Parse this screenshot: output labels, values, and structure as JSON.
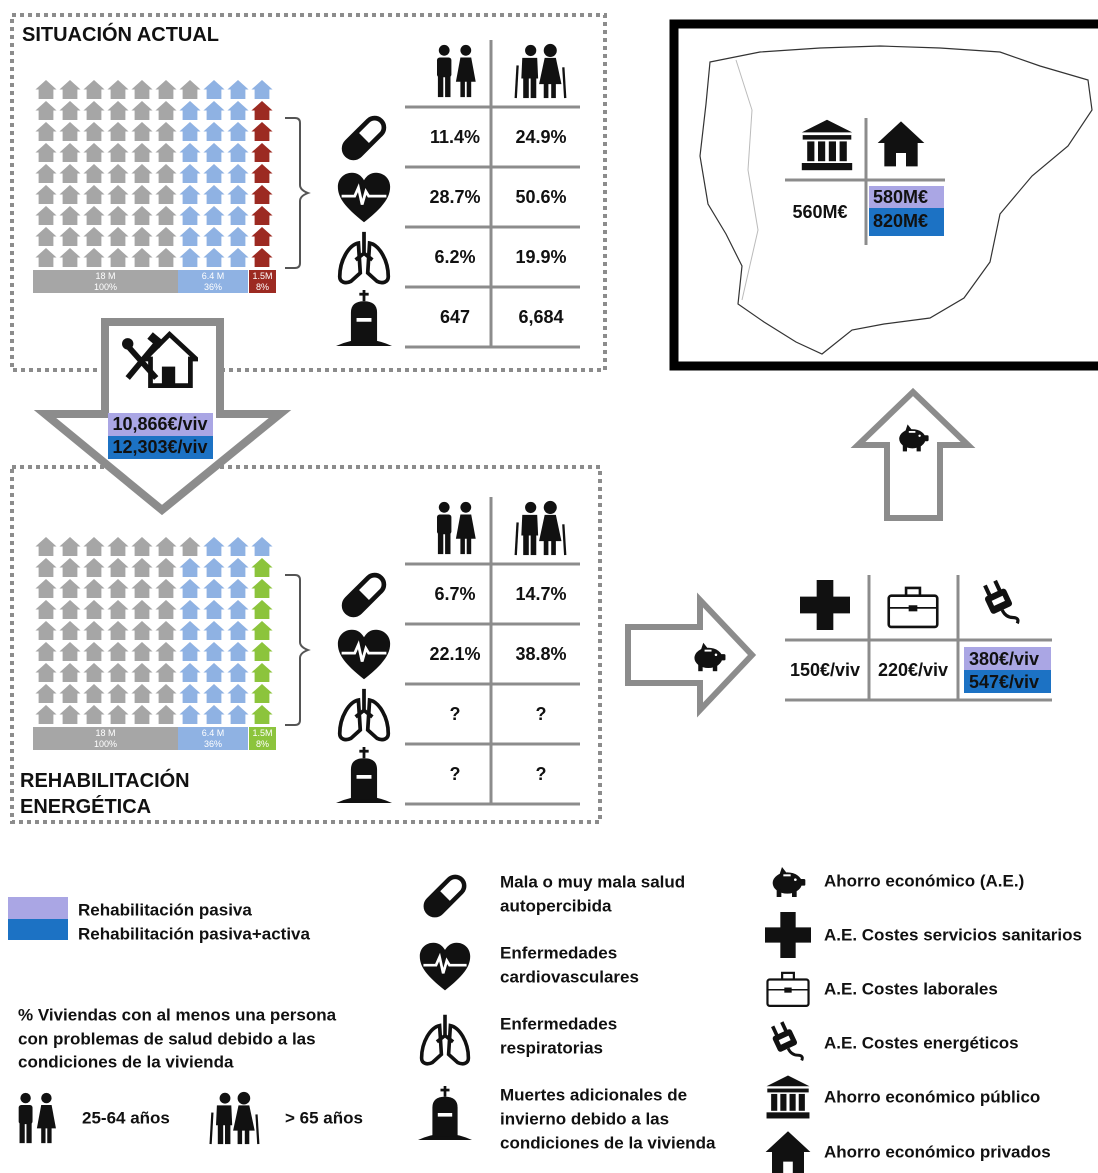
{
  "current": {
    "title": "SITUACIÓN ACTUAL",
    "bars": [
      {
        "count": "18 M",
        "pct": "100%"
      },
      {
        "count": "6.4 M",
        "pct": "36%"
      },
      {
        "count": "1.5M",
        "pct": "8%"
      }
    ],
    "rows": [
      [
        "11.4%",
        "24.9%"
      ],
      [
        "28.7%",
        "50.6%"
      ],
      [
        "6.2%",
        "19.9%"
      ],
      [
        "647",
        "6,684"
      ]
    ]
  },
  "investment": [
    "10,866€/viv",
    "12,303€/viv"
  ],
  "rehab": {
    "title": [
      "REHABILITACIÓN",
      "ENERGÉTICA"
    ],
    "bars": [
      {
        "count": "18 M",
        "pct": "100%"
      },
      {
        "count": "6.4 M",
        "pct": "36%"
      },
      {
        "count": "1.5M",
        "pct": "8%"
      }
    ],
    "rows": [
      [
        "6.7%",
        "14.7%"
      ],
      [
        "22.1%",
        "38.8%"
      ],
      [
        "?",
        "?"
      ],
      [
        "?",
        "?"
      ]
    ]
  },
  "map": {
    "public": "560M€",
    "private": [
      "580M€",
      "820M€"
    ]
  },
  "savings": {
    "health": "150€/viv",
    "labor": "220€/viv",
    "energy": [
      "380€/viv",
      "547€/viv"
    ]
  },
  "legend": {
    "scenarios": [
      "Rehabilitación pasiva",
      "Rehabilitación pasiva+activa"
    ],
    "note": [
      "% Viviendas con al menos una persona",
      "con problemas de salud debido a las",
      "condiciones  de la vivienda"
    ],
    "groups": [
      "25-64 años",
      "> 65 años"
    ],
    "indicators": [
      [
        "Mala o muy mala salud",
        "autopercibida"
      ],
      [
        "Enfermedades",
        "cardiovasculares"
      ],
      [
        "Enfermedades",
        "respiratorias"
      ],
      [
        "Muertes adicionales de",
        "invierno debido a las",
        "condiciones de la vivienda"
      ]
    ],
    "savings": [
      "Ahorro económico (A.E.)",
      "A.E. Costes servicios sanitarios",
      "A.E. Costes laborales",
      "A.E. Costes energéticos",
      "Ahorro económico público",
      "Ahorro económico privados"
    ]
  }
}
